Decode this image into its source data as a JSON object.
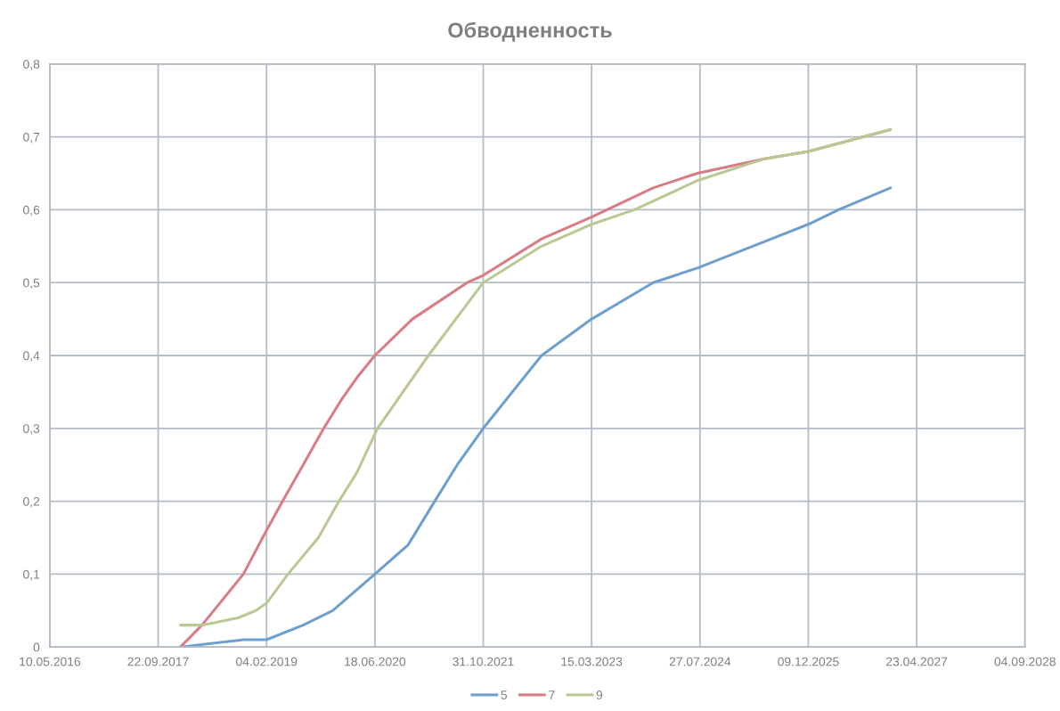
{
  "chart_data": {
    "type": "line",
    "title": "Обводненность",
    "xlim": [
      "2016-05-10",
      "2028-09-04"
    ],
    "xticks": [
      {
        "value": "2016-05-10",
        "label": "10.05.2016"
      },
      {
        "value": "2017-09-22",
        "label": "22.09.2017"
      },
      {
        "value": "2019-02-04",
        "label": "04.02.2019"
      },
      {
        "value": "2020-06-18",
        "label": "18.06.2020"
      },
      {
        "value": "2021-10-31",
        "label": "31.10.2021"
      },
      {
        "value": "2023-03-15",
        "label": "15.03.2023"
      },
      {
        "value": "2024-07-27",
        "label": "27.07.2024"
      },
      {
        "value": "2025-12-09",
        "label": "09.12.2025"
      },
      {
        "value": "2027-04-23",
        "label": "23.04.2027"
      },
      {
        "value": "2028-09-04",
        "label": "04.09.2028"
      }
    ],
    "ylim": [
      0,
      0.8
    ],
    "yticks": [
      {
        "value": 0,
        "label": "0"
      },
      {
        "value": 0.1,
        "label": "0,1"
      },
      {
        "value": 0.2,
        "label": "0,2"
      },
      {
        "value": 0.3,
        "label": "0,3"
      },
      {
        "value": 0.4,
        "label": "0,4"
      },
      {
        "value": 0.5,
        "label": "0,5"
      },
      {
        "value": 0.6,
        "label": "0,6"
      },
      {
        "value": 0.7,
        "label": "0,7"
      },
      {
        "value": 0.8,
        "label": "0,8"
      }
    ],
    "grid": true,
    "legend": "bottom",
    "marker": "none",
    "line_style": "solid",
    "series": [
      {
        "name": "5",
        "color": "#6f9fcf",
        "x": [
          "2018-01-03",
          "2018-10-20",
          "2019-02-04",
          "2019-07-23",
          "2019-12-06",
          "2020-06-18",
          "2020-11-18",
          "2021-03-21",
          "2021-07-03",
          "2021-10-31",
          "2022-07-27",
          "2023-03-15",
          "2023-12-24",
          "2024-07-15",
          "2025-12-09",
          "2026-04-28",
          "2026-12-23"
        ],
        "values": [
          0,
          0.01,
          0.01,
          0.03,
          0.05,
          0.1,
          0.14,
          0.2,
          0.25,
          0.3,
          0.4,
          0.45,
          0.5,
          0.52,
          0.58,
          0.6,
          0.63
        ]
      },
      {
        "name": "7",
        "color": "#d97c85",
        "x": [
          "2018-01-03",
          "2018-04-12",
          "2018-10-20",
          "2019-02-04",
          "2019-04-19",
          "2019-07-23",
          "2019-10-26",
          "2020-01-17",
          "2020-03-28",
          "2020-06-18",
          "2020-12-08",
          "2021-08-18",
          "2021-10-31",
          "2022-07-27",
          "2023-03-15",
          "2023-12-24",
          "2024-07-15",
          "2025-05-21",
          "2025-12-09",
          "2026-12-23"
        ],
        "values": [
          0,
          0.03,
          0.1,
          0.16,
          0.2,
          0.25,
          0.3,
          0.34,
          0.37,
          0.4,
          0.45,
          0.5,
          0.51,
          0.56,
          0.59,
          0.63,
          0.65,
          0.67,
          0.68,
          0.71
        ]
      },
      {
        "name": "9",
        "color": "#b9c994",
        "x": [
          "2018-01-03",
          "2018-04-12",
          "2018-09-25",
          "2018-12-17",
          "2019-02-04",
          "2019-05-14",
          "2019-10-01",
          "2020-01-04",
          "2020-03-28",
          "2020-06-30",
          "2021-02-20",
          "2021-10-31",
          "2022-07-27",
          "2023-03-15",
          "2023-09-29",
          "2024-07-15",
          "2025-05-21",
          "2025-12-09",
          "2026-12-23"
        ],
        "values": [
          0.03,
          0.03,
          0.04,
          0.05,
          0.06,
          0.1,
          0.15,
          0.2,
          0.24,
          0.3,
          0.4,
          0.5,
          0.55,
          0.58,
          0.6,
          0.64,
          0.67,
          0.68,
          0.71
        ]
      }
    ]
  }
}
